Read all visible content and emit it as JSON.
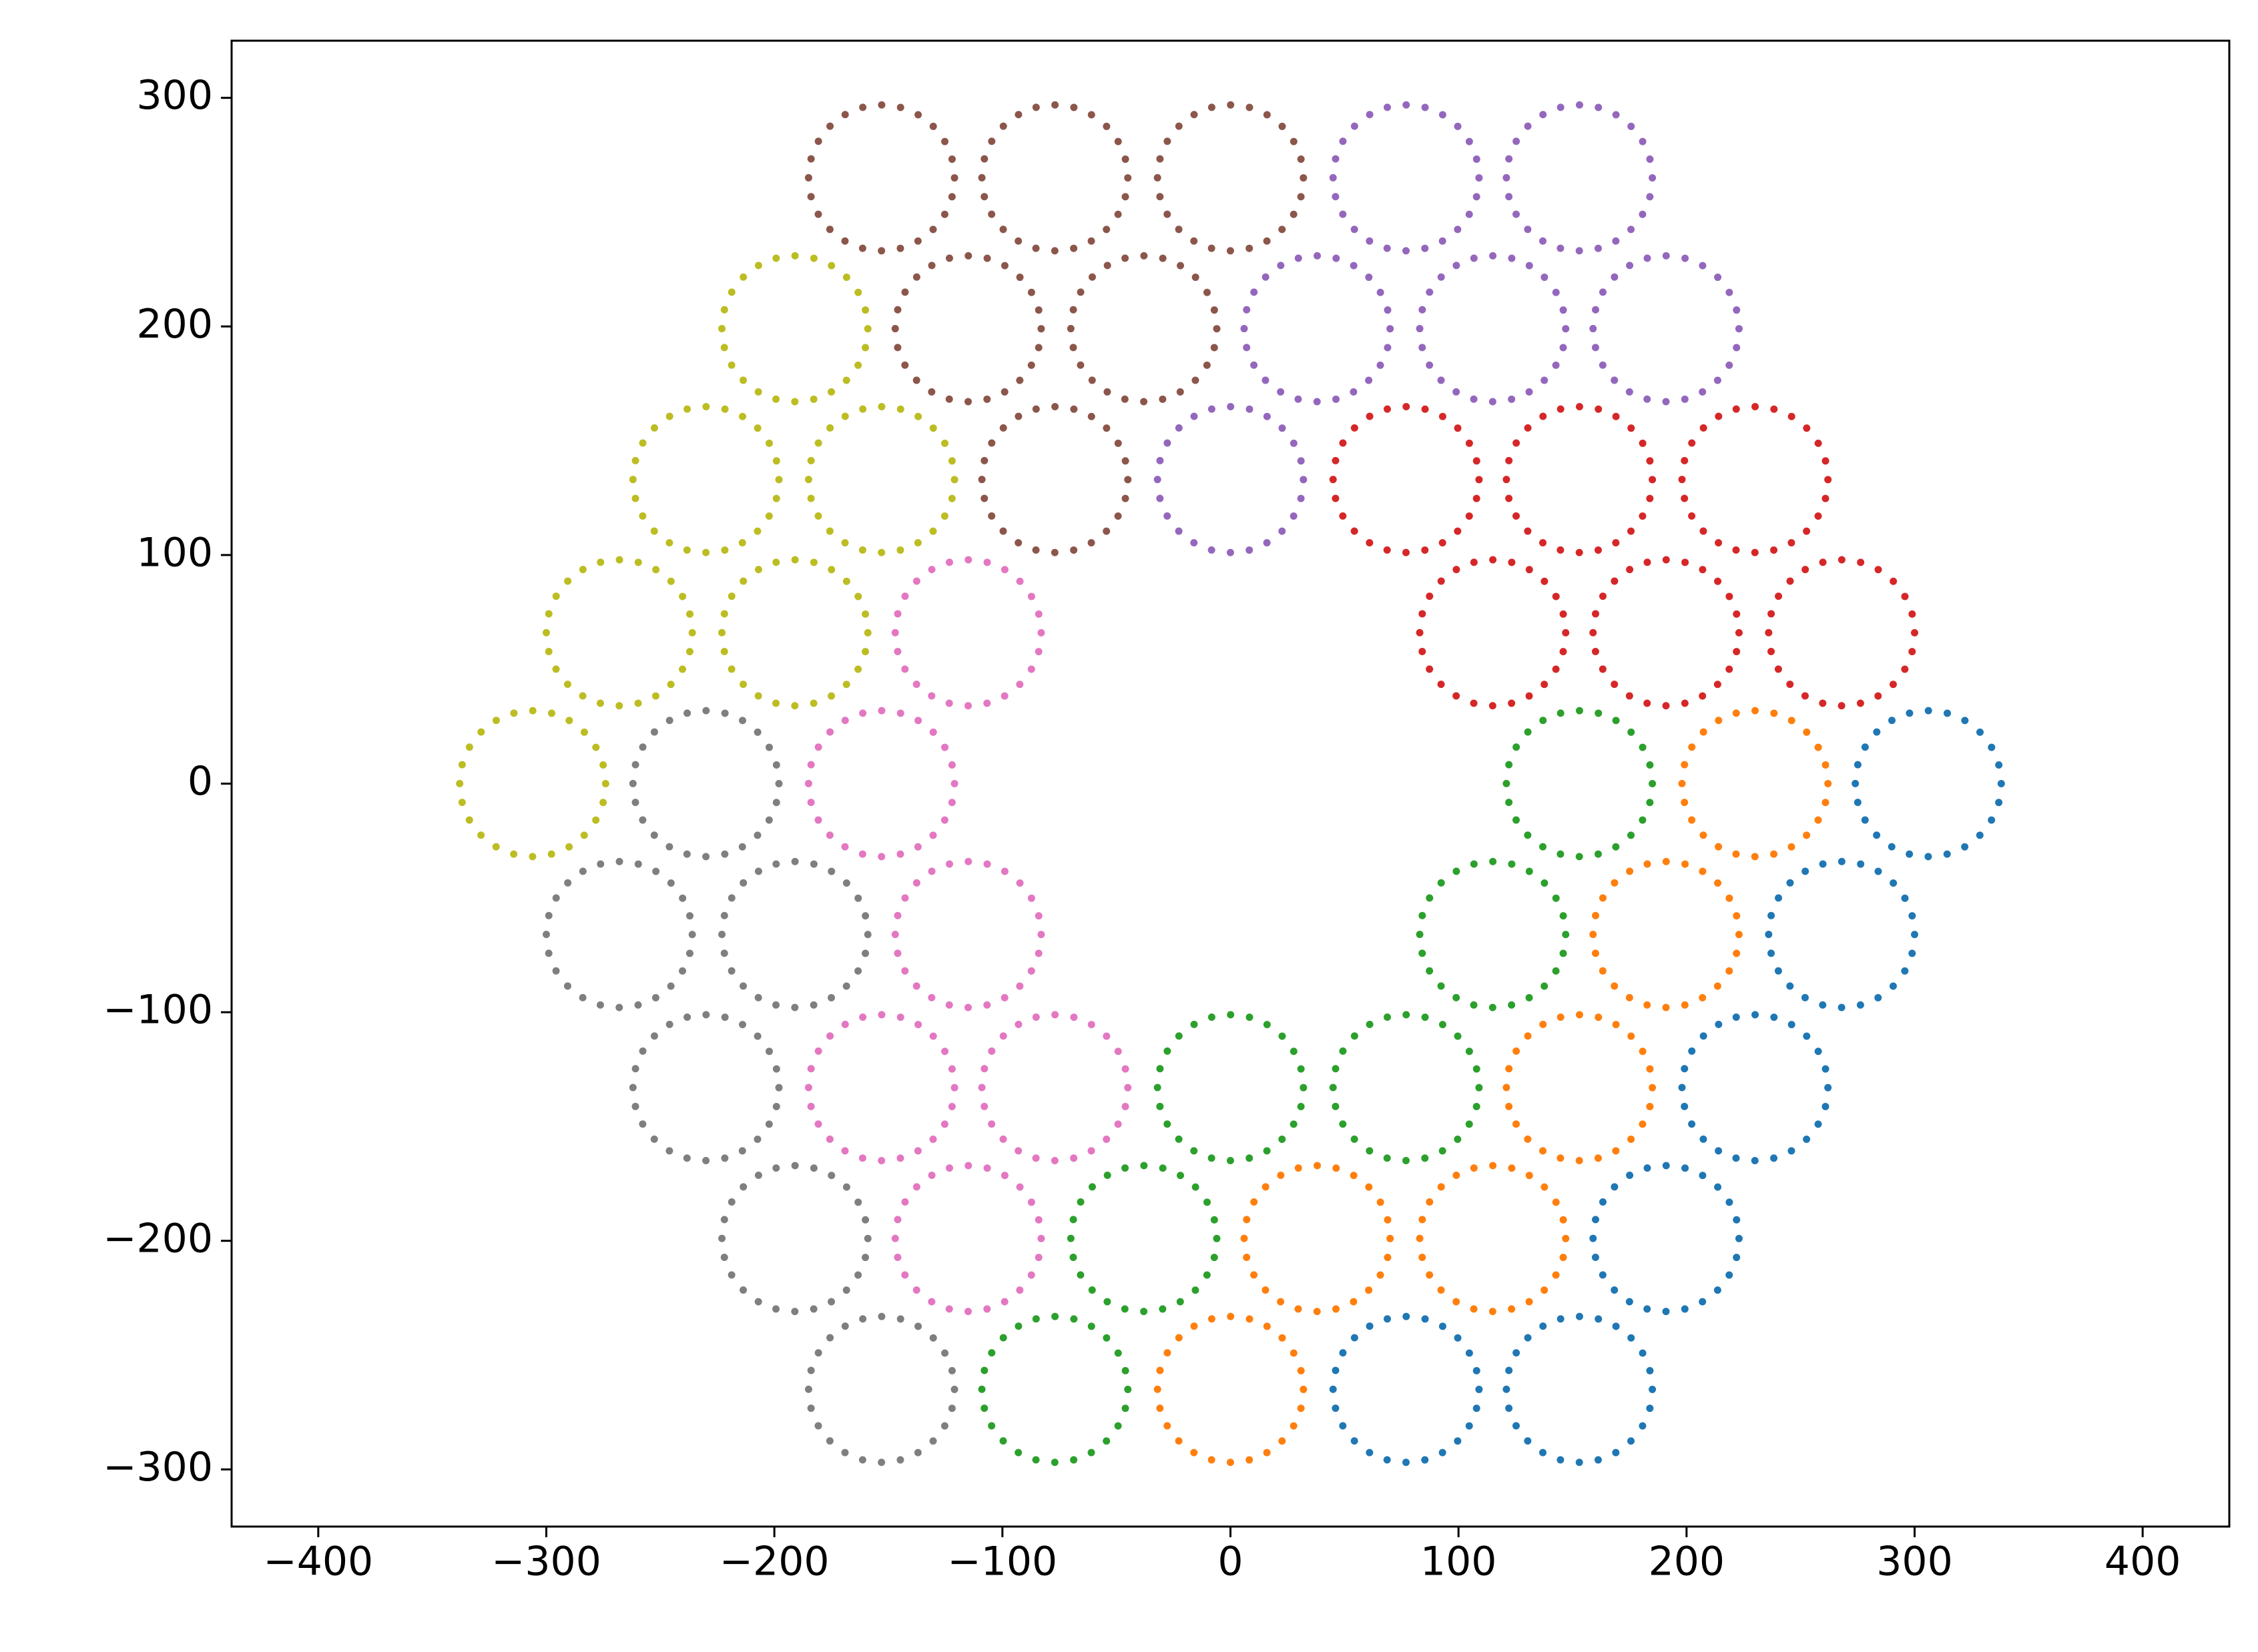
{
  "chart_data": {
    "type": "circles",
    "radius": 32,
    "xlim": [
      -438,
      438
    ],
    "ylim": [
      -325,
      325
    ],
    "xticks": [
      {
        "value": -400,
        "label": "−400"
      },
      {
        "value": -300,
        "label": "−300"
      },
      {
        "value": -200,
        "label": "−200"
      },
      {
        "value": -100,
        "label": "−100"
      },
      0,
      100,
      200,
      300,
      400
    ],
    "yticks": [
      {
        "value": -300,
        "label": "−300"
      },
      {
        "value": -200,
        "label": "−200"
      },
      {
        "value": -100,
        "label": "−100"
      },
      0,
      100,
      200,
      300
    ],
    "grid": false,
    "series": [
      {
        "color": "#1f77b4",
        "x": [
          306,
          268,
          230,
          191,
          153,
          77
        ],
        "y": [
          0,
          -66,
          -133,
          -199,
          -265,
          -265
        ]
      },
      {
        "color": "#ff7f0e",
        "x": [
          230,
          191,
          153,
          115,
          38,
          0
        ],
        "y": [
          0,
          -66,
          -133,
          -199,
          -199,
          -265
        ]
      },
      {
        "color": "#2ca02c",
        "x": [
          153,
          115,
          77,
          0,
          -38,
          -77
        ],
        "y": [
          0,
          -66,
          -133,
          -133,
          -199,
          -265
        ]
      },
      {
        "color": "#d62728",
        "x": [
          268,
          191,
          115,
          230,
          153,
          77
        ],
        "y": [
          66,
          66,
          66,
          133,
          133,
          133
        ]
      },
      {
        "color": "#9467bd",
        "x": [
          153,
          77,
          191,
          115,
          38,
          0
        ],
        "y": [
          265,
          265,
          199,
          199,
          199,
          133
        ]
      },
      {
        "color": "#8c564b",
        "x": [
          0,
          -77,
          -153,
          -38,
          -115,
          -77
        ],
        "y": [
          265,
          265,
          265,
          199,
          199,
          133
        ]
      },
      {
        "color": "#bcbd22",
        "x": [
          -191,
          -230,
          -153,
          -268,
          -191,
          -306
        ],
        "y": [
          199,
          133,
          133,
          66,
          66,
          0
        ]
      },
      {
        "color": "#e377c2",
        "x": [
          -115,
          -153,
          -115,
          -153,
          -77,
          -115
        ],
        "y": [
          66,
          0,
          -66,
          -133,
          -133,
          -199
        ]
      },
      {
        "color": "#7f7f7f",
        "x": [
          -230,
          -268,
          -191,
          -230,
          -191,
          -153
        ],
        "y": [
          0,
          -66,
          -66,
          -133,
          -199,
          -265
        ]
      }
    ]
  }
}
